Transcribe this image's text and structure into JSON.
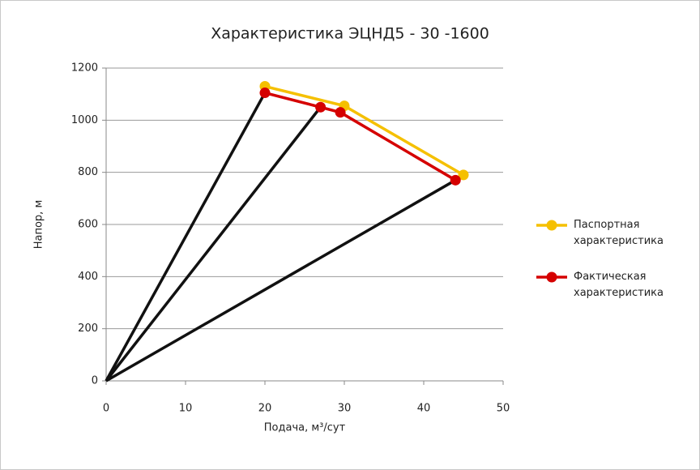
{
  "chart_data": {
    "type": "line",
    "title": "Характеристика ЭЦНД5 - 30 -1600",
    "x_label": "Подача, м³/сут",
    "y_label": "Напор, м",
    "xlim": [
      0,
      50
    ],
    "xticks": [
      0,
      10,
      20,
      30,
      40,
      50
    ],
    "ylim": [
      0,
      1200
    ],
    "yticks": [
      0,
      200,
      400,
      600,
      800,
      1000,
      1200
    ],
    "grid": true,
    "legend": "right",
    "series": [
      {
        "name": "Паспортная характеристика",
        "color": "#f5c000",
        "marker": true,
        "x": [
          20,
          30,
          45
        ],
        "values": [
          1130,
          1055,
          790
        ]
      },
      {
        "name": "Фактическая характеристика",
        "color": "#d50000",
        "marker": true,
        "x": [
          20,
          27,
          29.5,
          44
        ],
        "values": [
          1105,
          1050,
          1030,
          770
        ]
      },
      {
        "color": "#111111",
        "marker": false,
        "x": [
          0,
          20
        ],
        "values": [
          0,
          1105
        ]
      },
      {
        "color": "#111111",
        "marker": false,
        "x": [
          0,
          27
        ],
        "values": [
          0,
          1050
        ]
      },
      {
        "color": "#111111",
        "marker": false,
        "x": [
          0,
          44
        ],
        "values": [
          0,
          770
        ]
      }
    ]
  }
}
